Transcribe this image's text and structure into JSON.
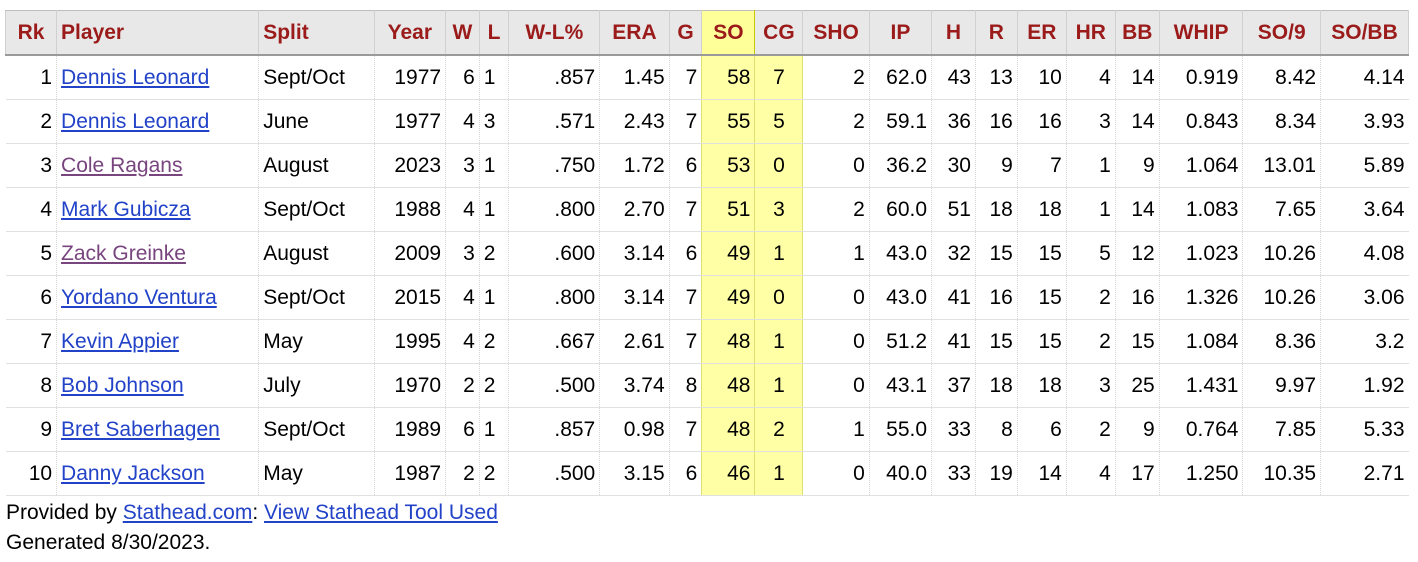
{
  "table": {
    "headers": [
      "Rk",
      "Player",
      "Split",
      "Year",
      "W",
      "L",
      "W-L%",
      "ERA",
      "G",
      "SO",
      "CG",
      "SHO",
      "IP",
      "H",
      "R",
      "ER",
      "HR",
      "BB",
      "WHIP",
      "SO/9",
      "SO/BB"
    ],
    "sorted_column": "SO",
    "rows": [
      {
        "rk": "1",
        "player": "Dennis Leonard",
        "visited": false,
        "split": "Sept/Oct",
        "year": "1977",
        "w": "6",
        "l": "1",
        "wl": ".857",
        "era": "1.45",
        "g": "7",
        "so": "58",
        "cg": "7",
        "sho": "2",
        "ip": "62.0",
        "h": "43",
        "r": "13",
        "er": "10",
        "hr": "4",
        "bb": "14",
        "whip": "0.919",
        "so9": "8.42",
        "sobb": "4.14"
      },
      {
        "rk": "2",
        "player": "Dennis Leonard",
        "visited": false,
        "split": "June",
        "year": "1977",
        "w": "4",
        "l": "3",
        "wl": ".571",
        "era": "2.43",
        "g": "7",
        "so": "55",
        "cg": "5",
        "sho": "2",
        "ip": "59.1",
        "h": "36",
        "r": "16",
        "er": "16",
        "hr": "3",
        "bb": "14",
        "whip": "0.843",
        "so9": "8.34",
        "sobb": "3.93"
      },
      {
        "rk": "3",
        "player": "Cole Ragans",
        "visited": true,
        "split": "August",
        "year": "2023",
        "w": "3",
        "l": "1",
        "wl": ".750",
        "era": "1.72",
        "g": "6",
        "so": "53",
        "cg": "0",
        "sho": "0",
        "ip": "36.2",
        "h": "30",
        "r": "9",
        "er": "7",
        "hr": "1",
        "bb": "9",
        "whip": "1.064",
        "so9": "13.01",
        "sobb": "5.89"
      },
      {
        "rk": "4",
        "player": "Mark Gubicza",
        "visited": false,
        "split": "Sept/Oct",
        "year": "1988",
        "w": "4",
        "l": "1",
        "wl": ".800",
        "era": "2.70",
        "g": "7",
        "so": "51",
        "cg": "3",
        "sho": "2",
        "ip": "60.0",
        "h": "51",
        "r": "18",
        "er": "18",
        "hr": "1",
        "bb": "14",
        "whip": "1.083",
        "so9": "7.65",
        "sobb": "3.64"
      },
      {
        "rk": "5",
        "player": "Zack Greinke",
        "visited": true,
        "split": "August",
        "year": "2009",
        "w": "3",
        "l": "2",
        "wl": ".600",
        "era": "3.14",
        "g": "6",
        "so": "49",
        "cg": "1",
        "sho": "1",
        "ip": "43.0",
        "h": "32",
        "r": "15",
        "er": "15",
        "hr": "5",
        "bb": "12",
        "whip": "1.023",
        "so9": "10.26",
        "sobb": "4.08"
      },
      {
        "rk": "6",
        "player": "Yordano Ventura",
        "visited": false,
        "split": "Sept/Oct",
        "year": "2015",
        "w": "4",
        "l": "1",
        "wl": ".800",
        "era": "3.14",
        "g": "7",
        "so": "49",
        "cg": "0",
        "sho": "0",
        "ip": "43.0",
        "h": "41",
        "r": "16",
        "er": "15",
        "hr": "2",
        "bb": "16",
        "whip": "1.326",
        "so9": "10.26",
        "sobb": "3.06"
      },
      {
        "rk": "7",
        "player": "Kevin Appier",
        "visited": false,
        "split": "May",
        "year": "1995",
        "w": "4",
        "l": "2",
        "wl": ".667",
        "era": "2.61",
        "g": "7",
        "so": "48",
        "cg": "1",
        "sho": "0",
        "ip": "51.2",
        "h": "41",
        "r": "15",
        "er": "15",
        "hr": "2",
        "bb": "15",
        "whip": "1.084",
        "so9": "8.36",
        "sobb": "3.2"
      },
      {
        "rk": "8",
        "player": "Bob Johnson",
        "visited": false,
        "split": "July",
        "year": "1970",
        "w": "2",
        "l": "2",
        "wl": ".500",
        "era": "3.74",
        "g": "8",
        "so": "48",
        "cg": "1",
        "sho": "0",
        "ip": "43.1",
        "h": "37",
        "r": "18",
        "er": "18",
        "hr": "3",
        "bb": "25",
        "whip": "1.431",
        "so9": "9.97",
        "sobb": "1.92"
      },
      {
        "rk": "9",
        "player": "Bret Saberhagen",
        "visited": false,
        "split": "Sept/Oct",
        "year": "1989",
        "w": "6",
        "l": "1",
        "wl": ".857",
        "era": "0.98",
        "g": "7",
        "so": "48",
        "cg": "2",
        "sho": "1",
        "ip": "55.0",
        "h": "33",
        "r": "8",
        "er": "6",
        "hr": "2",
        "bb": "9",
        "whip": "0.764",
        "so9": "7.85",
        "sobb": "5.33"
      },
      {
        "rk": "10",
        "player": "Danny Jackson",
        "visited": false,
        "split": "May",
        "year": "1987",
        "w": "2",
        "l": "2",
        "wl": ".500",
        "era": "3.15",
        "g": "6",
        "so": "46",
        "cg": "1",
        "sho": "0",
        "ip": "40.0",
        "h": "33",
        "r": "19",
        "er": "14",
        "hr": "4",
        "bb": "17",
        "whip": "1.250",
        "so9": "10.35",
        "sobb": "2.71"
      }
    ]
  },
  "footer": {
    "provided_by": "Provided by ",
    "stathead_link": "Stathead.com",
    "separator": ": ",
    "tool_link": "View Stathead Tool Used",
    "generated": "Generated 8/30/2023."
  },
  "colors": {
    "header_text": "#9b1b1b",
    "link": "#2242c8",
    "visited_link": "#78457f",
    "sorted_column_highlight": "#ffffa6"
  }
}
